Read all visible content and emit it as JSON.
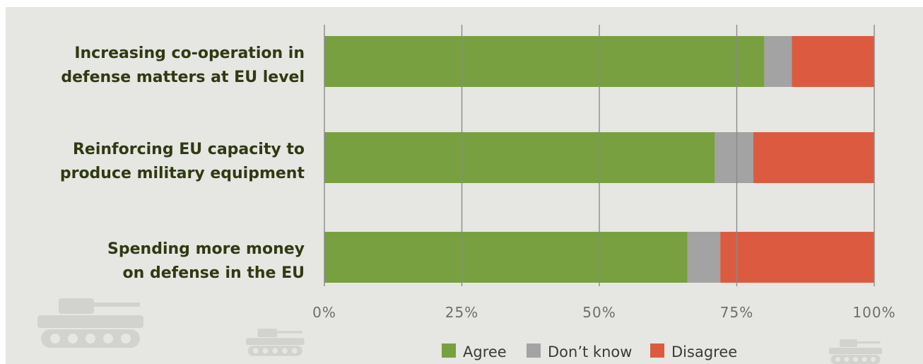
{
  "chart_data": {
    "type": "bar",
    "orientation": "horizontal",
    "stacked": true,
    "categories": [
      [
        "Increasing co-operation in",
        "defense matters at EU level"
      ],
      [
        "Reinforcing EU capacity to",
        "produce military equipment"
      ],
      [
        "Spending more money",
        "on defense in the EU"
      ]
    ],
    "series": [
      {
        "name": "Agree",
        "color": "#78a040",
        "values": [
          80,
          71,
          66
        ]
      },
      {
        "name": "Don’t know",
        "color": "#a3a3a3",
        "values": [
          5,
          7,
          6
        ]
      },
      {
        "name": "Disagree",
        "color": "#dc5b40",
        "values": [
          15,
          22,
          28
        ]
      }
    ],
    "xlim": [
      0,
      100
    ],
    "xticks": [
      0,
      25,
      50,
      75,
      100
    ],
    "xtick_labels": [
      "0%",
      "25%",
      "50%",
      "75%",
      "100%"
    ],
    "grid": true,
    "legend_position": "bottom-center",
    "title": "",
    "xlabel": "",
    "ylabel": ""
  },
  "colors": {
    "background": "#e6e6e3",
    "category_text": "#2f3a12",
    "gridline": "#8a8a8a",
    "tank_watermark": "#d2d2cf"
  }
}
